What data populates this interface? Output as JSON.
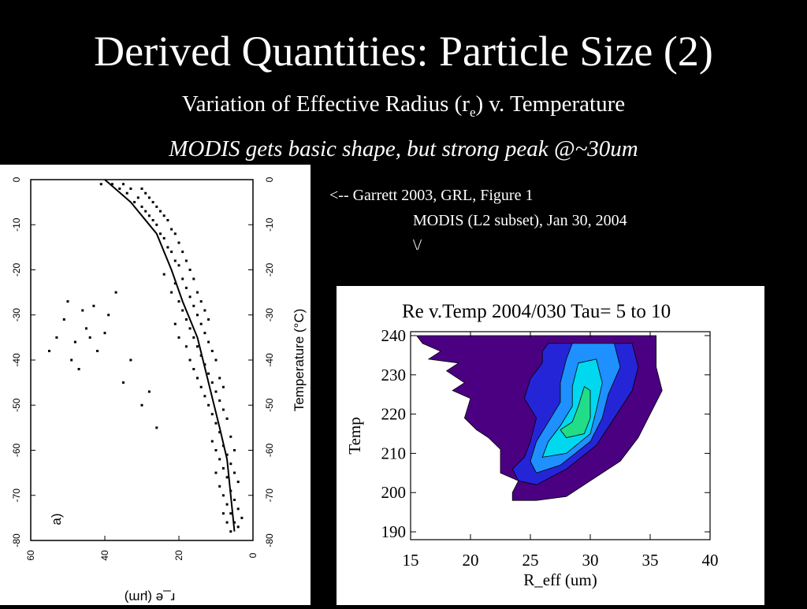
{
  "slide": {
    "title": "Derived Quantities: Particle Size  (2)",
    "subtitle_pre": "Variation of Effective Radius (r",
    "subtitle_sub": "e",
    "subtitle_post": ") v. Temperature",
    "note": "MODIS gets basic shape, but strong peak @~30um",
    "caption_line1": "<-- Garrett 2003, GRL, Figure 1",
    "caption_line2": "MODIS (L2 subset), Jan 30, 2004",
    "caption_line3": "\\/"
  },
  "chart_data": [
    {
      "type": "scatter",
      "panel_label": "a)",
      "xlabel": "r_e (μm)",
      "ylabel": "Temperature (°C)",
      "xlim": [
        60,
        0
      ],
      "ylim": [
        0,
        -80
      ],
      "x_ticks": [
        "60",
        "40",
        "20",
        "0"
      ],
      "y_ticks": [
        "0",
        "-10",
        "-20",
        "-30",
        "-40",
        "-50",
        "-60",
        "-70",
        "-80"
      ],
      "rotated": true,
      "point_color": "#000000",
      "trend_line": {
        "x": [
          40,
          33,
          26,
          22,
          19,
          15,
          12,
          9,
          7,
          6,
          5
        ],
        "y": [
          0,
          -5,
          -12,
          -20,
          -27,
          -35,
          -45,
          -55,
          -62,
          -70,
          -78
        ]
      },
      "points": [
        [
          41,
          -1
        ],
        [
          38,
          -1
        ],
        [
          35,
          -1
        ],
        [
          33,
          -2
        ],
        [
          36,
          -2
        ],
        [
          30,
          -2
        ],
        [
          29,
          -3
        ],
        [
          34,
          -3
        ],
        [
          28,
          -4
        ],
        [
          31,
          -4
        ],
        [
          27,
          -5
        ],
        [
          32,
          -5
        ],
        [
          26,
          -6
        ],
        [
          30,
          -6
        ],
        [
          25,
          -7
        ],
        [
          29,
          -7
        ],
        [
          24,
          -8
        ],
        [
          28,
          -8
        ],
        [
          27,
          -9
        ],
        [
          23,
          -9
        ],
        [
          26,
          -10
        ],
        [
          22,
          -11
        ],
        [
          25,
          -12
        ],
        [
          21,
          -12
        ],
        [
          24,
          -13
        ],
        [
          20,
          -14
        ],
        [
          23,
          -15
        ],
        [
          22,
          -16
        ],
        [
          19,
          -16
        ],
        [
          21,
          -18
        ],
        [
          18,
          -18
        ],
        [
          20,
          -19
        ],
        [
          17,
          -20
        ],
        [
          24,
          -21
        ],
        [
          19,
          -22
        ],
        [
          16,
          -22
        ],
        [
          21,
          -23
        ],
        [
          18,
          -24
        ],
        [
          15,
          -25
        ],
        [
          22,
          -25
        ],
        [
          17,
          -26
        ],
        [
          14,
          -27
        ],
        [
          20,
          -27
        ],
        [
          16,
          -28
        ],
        [
          13,
          -29
        ],
        [
          19,
          -29
        ],
        [
          15,
          -30
        ],
        [
          12,
          -31
        ],
        [
          18,
          -31
        ],
        [
          14,
          -32
        ],
        [
          21,
          -32
        ],
        [
          17,
          -33
        ],
        [
          13,
          -34
        ],
        [
          16,
          -35
        ],
        [
          20,
          -35
        ],
        [
          12,
          -36
        ],
        [
          15,
          -37
        ],
        [
          18,
          -37
        ],
        [
          11,
          -38
        ],
        [
          14,
          -39
        ],
        [
          17,
          -40
        ],
        [
          10,
          -40
        ],
        [
          13,
          -41
        ],
        [
          16,
          -42
        ],
        [
          12,
          -43
        ],
        [
          9,
          -44
        ],
        [
          15,
          -44
        ],
        [
          11,
          -45
        ],
        [
          14,
          -46
        ],
        [
          8,
          -46
        ],
        [
          10,
          -47
        ],
        [
          13,
          -48
        ],
        [
          9,
          -49
        ],
        [
          12,
          -50
        ],
        [
          8,
          -51
        ],
        [
          11,
          -52
        ],
        [
          7,
          -53
        ],
        [
          10,
          -54
        ],
        [
          9,
          -56
        ],
        [
          6,
          -57
        ],
        [
          11,
          -58
        ],
        [
          8,
          -59
        ],
        [
          5,
          -60
        ],
        [
          10,
          -60
        ],
        [
          7,
          -61
        ],
        [
          9,
          -62
        ],
        [
          6,
          -63
        ],
        [
          8,
          -64
        ],
        [
          5,
          -65
        ],
        [
          10,
          -65
        ],
        [
          7,
          -66
        ],
        [
          4,
          -67
        ],
        [
          9,
          -68
        ],
        [
          6,
          -69
        ],
        [
          8,
          -70
        ],
        [
          5,
          -71
        ],
        [
          7,
          -72
        ],
        [
          4,
          -73
        ],
        [
          6,
          -74
        ],
        [
          5,
          -76
        ],
        [
          7,
          -76
        ],
        [
          4,
          -77
        ],
        [
          6,
          -78
        ],
        [
          3,
          -75
        ],
        [
          8,
          -74
        ],
        [
          50,
          -27
        ],
        [
          46,
          -29
        ],
        [
          45,
          -33
        ],
        [
          44,
          -35
        ],
        [
          48,
          -36
        ],
        [
          53,
          -35
        ],
        [
          55,
          -38
        ],
        [
          49,
          -40
        ],
        [
          42,
          -38
        ],
        [
          47,
          -42
        ],
        [
          39,
          -30
        ],
        [
          37,
          -25
        ],
        [
          43,
          -28
        ],
        [
          51,
          -31
        ],
        [
          35,
          -45
        ],
        [
          33,
          -40
        ],
        [
          30,
          -50
        ],
        [
          28,
          -47
        ],
        [
          26,
          -55
        ],
        [
          40,
          -34
        ]
      ]
    },
    {
      "type": "heatmap",
      "plot_type": "filled contour",
      "title": "Re v.Temp 2004/030 Tau= 5 to 10",
      "xlabel": "R_eff (um)",
      "ylabel": "Temp",
      "xlim": [
        15,
        40
      ],
      "ylim": [
        188,
        241
      ],
      "x_ticks": [
        15,
        20,
        25,
        30,
        35,
        40
      ],
      "y_ticks": [
        190,
        200,
        210,
        220,
        230,
        240
      ],
      "levels": [
        {
          "level": 1,
          "color": "#4B0082"
        },
        {
          "level": 2,
          "color": "#2525D8"
        },
        {
          "level": 3,
          "color": "#1E90FF"
        },
        {
          "level": 4,
          "color": "#00D8F0"
        },
        {
          "level": 5,
          "color": "#22DD88"
        }
      ],
      "contours": [
        {
          "level": 1,
          "points": [
            [
              15.5,
              240
            ],
            [
              35.5,
              240
            ],
            [
              35.5,
              232
            ],
            [
              36,
              226
            ],
            [
              35,
              220
            ],
            [
              34,
              214
            ],
            [
              32.5,
              208
            ],
            [
              30,
              203
            ],
            [
              28,
              199
            ],
            [
              25.5,
              198
            ],
            [
              23.5,
              198
            ],
            [
              23.5,
              200
            ],
            [
              24,
              203
            ],
            [
              22.5,
              205
            ],
            [
              22.5,
              211
            ],
            [
              21.5,
              214
            ],
            [
              20.5,
              216
            ],
            [
              19.5,
              219
            ],
            [
              20,
              224
            ],
            [
              18.5,
              226
            ],
            [
              19.5,
              228
            ],
            [
              18,
              231
            ],
            [
              19,
              233
            ],
            [
              16.5,
              234
            ],
            [
              17.5,
              236
            ],
            [
              16,
              238
            ]
          ]
        },
        {
          "level": 2,
          "points": [
            [
              26.5,
              238
            ],
            [
              33.5,
              238
            ],
            [
              34,
              232
            ],
            [
              33.5,
              226
            ],
            [
              32,
              219
            ],
            [
              30.5,
              212
            ],
            [
              28,
              206
            ],
            [
              25.5,
              202
            ],
            [
              24,
              203
            ],
            [
              23.5,
              206
            ],
            [
              24.5,
              209
            ],
            [
              25,
              213
            ],
            [
              25.5,
              219
            ],
            [
              24.5,
              224
            ],
            [
              25,
              229
            ],
            [
              26,
              233
            ],
            [
              26,
              236
            ]
          ]
        },
        {
          "level": 3,
          "points": [
            [
              28.5,
              238
            ],
            [
              32,
              238
            ],
            [
              32.5,
              232
            ],
            [
              31.5,
              225
            ],
            [
              31,
              219
            ],
            [
              30,
              213
            ],
            [
              27.5,
              207
            ],
            [
              25.5,
              205
            ],
            [
              25,
              208
            ],
            [
              25.5,
              213
            ],
            [
              26.5,
              218
            ],
            [
              27.5,
              223
            ],
            [
              27.5,
              228
            ],
            [
              28,
              234
            ]
          ]
        },
        {
          "level": 4,
          "points": [
            [
              29,
              233
            ],
            [
              30.5,
              234
            ],
            [
              31,
              228
            ],
            [
              30.5,
              221
            ],
            [
              30,
              215
            ],
            [
              28,
              210
            ],
            [
              26,
              209
            ],
            [
              26.5,
              213
            ],
            [
              27.5,
              217
            ],
            [
              28.5,
              222
            ],
            [
              28.5,
              227
            ]
          ]
        },
        {
          "level": 5,
          "points": [
            [
              29.5,
              227
            ],
            [
              30,
              226
            ],
            [
              30,
              219
            ],
            [
              29.5,
              215
            ],
            [
              28,
              214
            ],
            [
              27.5,
              216
            ],
            [
              28.5,
              218
            ],
            [
              29,
              222
            ]
          ]
        }
      ]
    }
  ]
}
